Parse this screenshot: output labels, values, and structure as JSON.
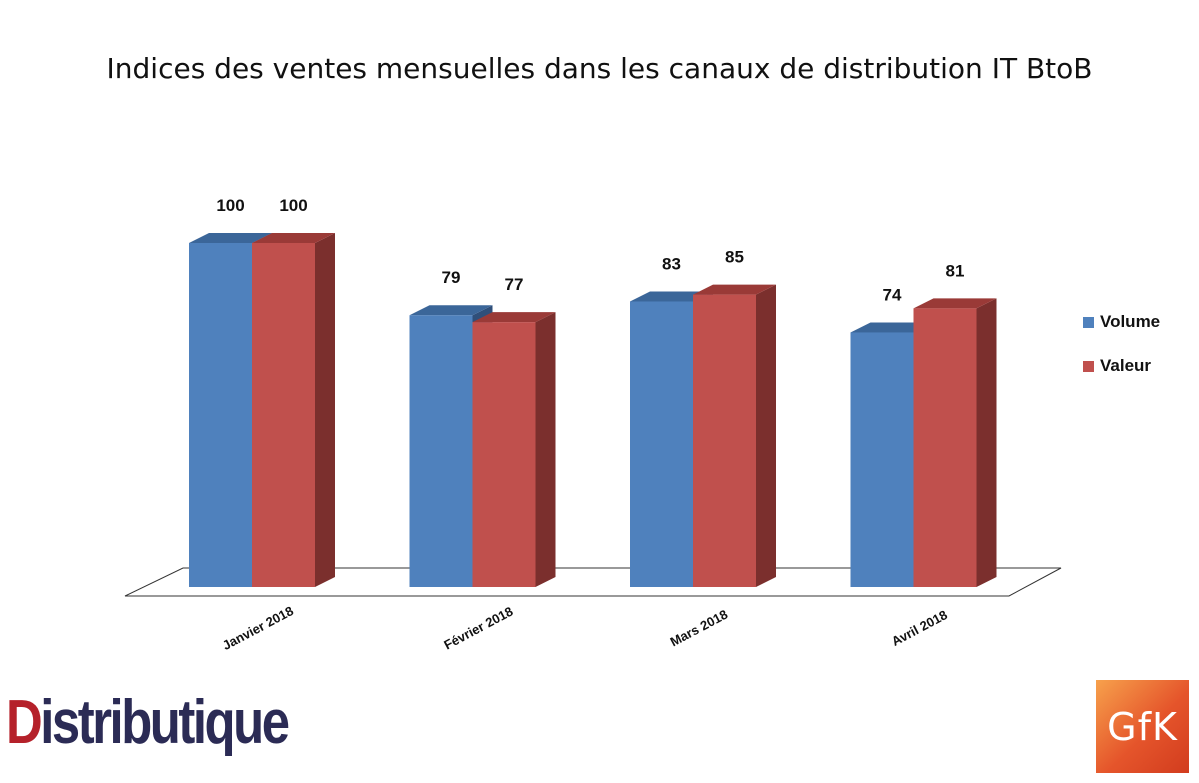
{
  "chart_data": {
    "type": "bar",
    "title": "Indices des ventes mensuelles dans les canaux de distribution IT BtoB",
    "categories": [
      "Janvier 2018",
      "Février 2018",
      "Mars 2018",
      "Avril 2018"
    ],
    "series": [
      {
        "name": "Volume",
        "values": [
          100,
          79,
          83,
          74
        ],
        "color": "#4f81bd",
        "top_color": "#3b6699"
      },
      {
        "name": "Valeur",
        "values": [
          100,
          77,
          85,
          81
        ],
        "color": "#c0504d",
        "side_color": "#7b2f2d",
        "top_color": "#9a3a37"
      }
    ],
    "ylim": [
      0,
      100
    ],
    "grid": false,
    "legend_position": "right",
    "style": "3d-clustered-column"
  },
  "logos": {
    "left": {
      "first_letter": "D",
      "rest": "istributique"
    },
    "right": {
      "text": "GfK"
    }
  }
}
